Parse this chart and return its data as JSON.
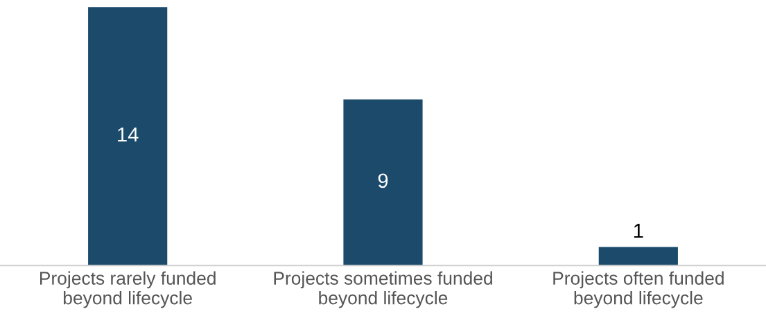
{
  "chart_data": {
    "type": "bar",
    "categories": [
      "Projects rarely funded\nbeyond lifecycle",
      "Projects sometimes funded\nbeyond lifecycle",
      "Projects often funded\nbeyond lifecycle"
    ],
    "values": [
      14,
      9,
      1
    ],
    "color": "#1b4a6b",
    "data_labels": true,
    "grid": false,
    "legend": false
  }
}
